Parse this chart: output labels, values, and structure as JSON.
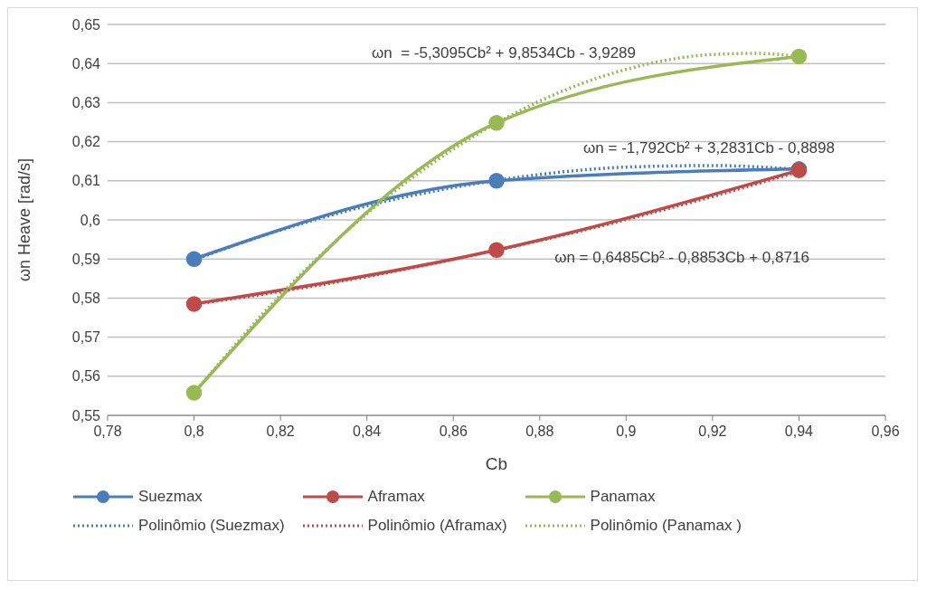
{
  "chart_data": {
    "type": "line",
    "xlabel": "Cb",
    "ylabel": "ωn Heave [rad/s]",
    "xlim": [
      0.78,
      0.96
    ],
    "xticks": [
      {
        "value": 0.78,
        "label": "0,78"
      },
      {
        "value": 0.8,
        "label": "0,8"
      },
      {
        "value": 0.82,
        "label": "0,82"
      },
      {
        "value": 0.84,
        "label": "0,84"
      },
      {
        "value": 0.86,
        "label": "0,86"
      },
      {
        "value": 0.88,
        "label": "0,88"
      },
      {
        "value": 0.9,
        "label": "0,9"
      },
      {
        "value": 0.92,
        "label": "0,92"
      },
      {
        "value": 0.94,
        "label": "0,94"
      },
      {
        "value": 0.96,
        "label": "0,96"
      }
    ],
    "ylim": [
      0.55,
      0.65
    ],
    "yticks": [
      {
        "value": 0.55,
        "label": "0,55"
      },
      {
        "value": 0.56,
        "label": "0,56"
      },
      {
        "value": 0.57,
        "label": "0,57"
      },
      {
        "value": 0.58,
        "label": "0,58"
      },
      {
        "value": 0.59,
        "label": "0,59"
      },
      {
        "value": 0.6,
        "label": "0,6"
      },
      {
        "value": 0.61,
        "label": "0,61"
      },
      {
        "value": 0.62,
        "label": "0,62"
      },
      {
        "value": 0.63,
        "label": "0,63"
      },
      {
        "value": 0.64,
        "label": "0,64"
      },
      {
        "value": 0.65,
        "label": "0,65"
      }
    ],
    "grid": "y",
    "legend": "bottom",
    "series": [
      {
        "name": "Suezmax",
        "color": "#4a7ebb",
        "marker": "circle",
        "line_style": "solid",
        "x": [
          0.8,
          0.87,
          0.94
        ],
        "values": [
          0.59,
          0.61,
          0.613
        ]
      },
      {
        "name": "Aframax",
        "color": "#be4b48",
        "marker": "circle",
        "line_style": "solid",
        "x": [
          0.8,
          0.87,
          0.94
        ],
        "values": [
          0.5785,
          0.5923,
          0.6127
        ]
      },
      {
        "name": "Panamax",
        "color": "#98b954",
        "marker": "circle",
        "line_style": "solid",
        "x": [
          0.8,
          0.87,
          0.94
        ],
        "values": [
          0.5558,
          0.6248,
          0.6418
        ]
      },
      {
        "name": "Polinômio (Suezmax)",
        "color": "#4a7ebb",
        "marker": "none",
        "line_style": "dotted",
        "x": [
          0.8,
          0.82,
          0.84,
          0.86,
          0.88,
          0.9,
          0.92,
          0.94
        ],
        "values": [
          0.5898,
          0.5974,
          0.6036,
          0.6083,
          0.6116,
          0.6135,
          0.6139,
          0.6129
        ]
      },
      {
        "name": "Polinômio (Aframax)",
        "color": "#be4b48",
        "marker": "none",
        "line_style": "dotted",
        "x": [
          0.8,
          0.82,
          0.84,
          0.86,
          0.88,
          0.9,
          0.92,
          0.94
        ],
        "values": [
          0.5784,
          0.5817,
          0.5855,
          0.5899,
          0.5947,
          0.6001,
          0.606,
          0.6124
        ]
      },
      {
        "name": "Polinômio (Panamax )",
        "color": "#98b954",
        "marker": "none",
        "line_style": "dotted",
        "x": [
          0.8,
          0.82,
          0.84,
          0.86,
          0.88,
          0.9,
          0.92,
          0.93,
          0.94
        ],
        "values": [
          0.5557,
          0.5808,
          0.6016,
          0.6181,
          0.6304,
          0.6385,
          0.6423,
          0.6426,
          0.6418
        ]
      }
    ],
    "annotations": [
      "ωn  = -5,3095Cb² + 9,8534Cb - 3,9289",
      "ωn = -1,792Cb² + 3,2831Cb - 0,8898",
      "ωn = 0,6485Cb² - 0,8853Cb + 0,8716"
    ]
  }
}
